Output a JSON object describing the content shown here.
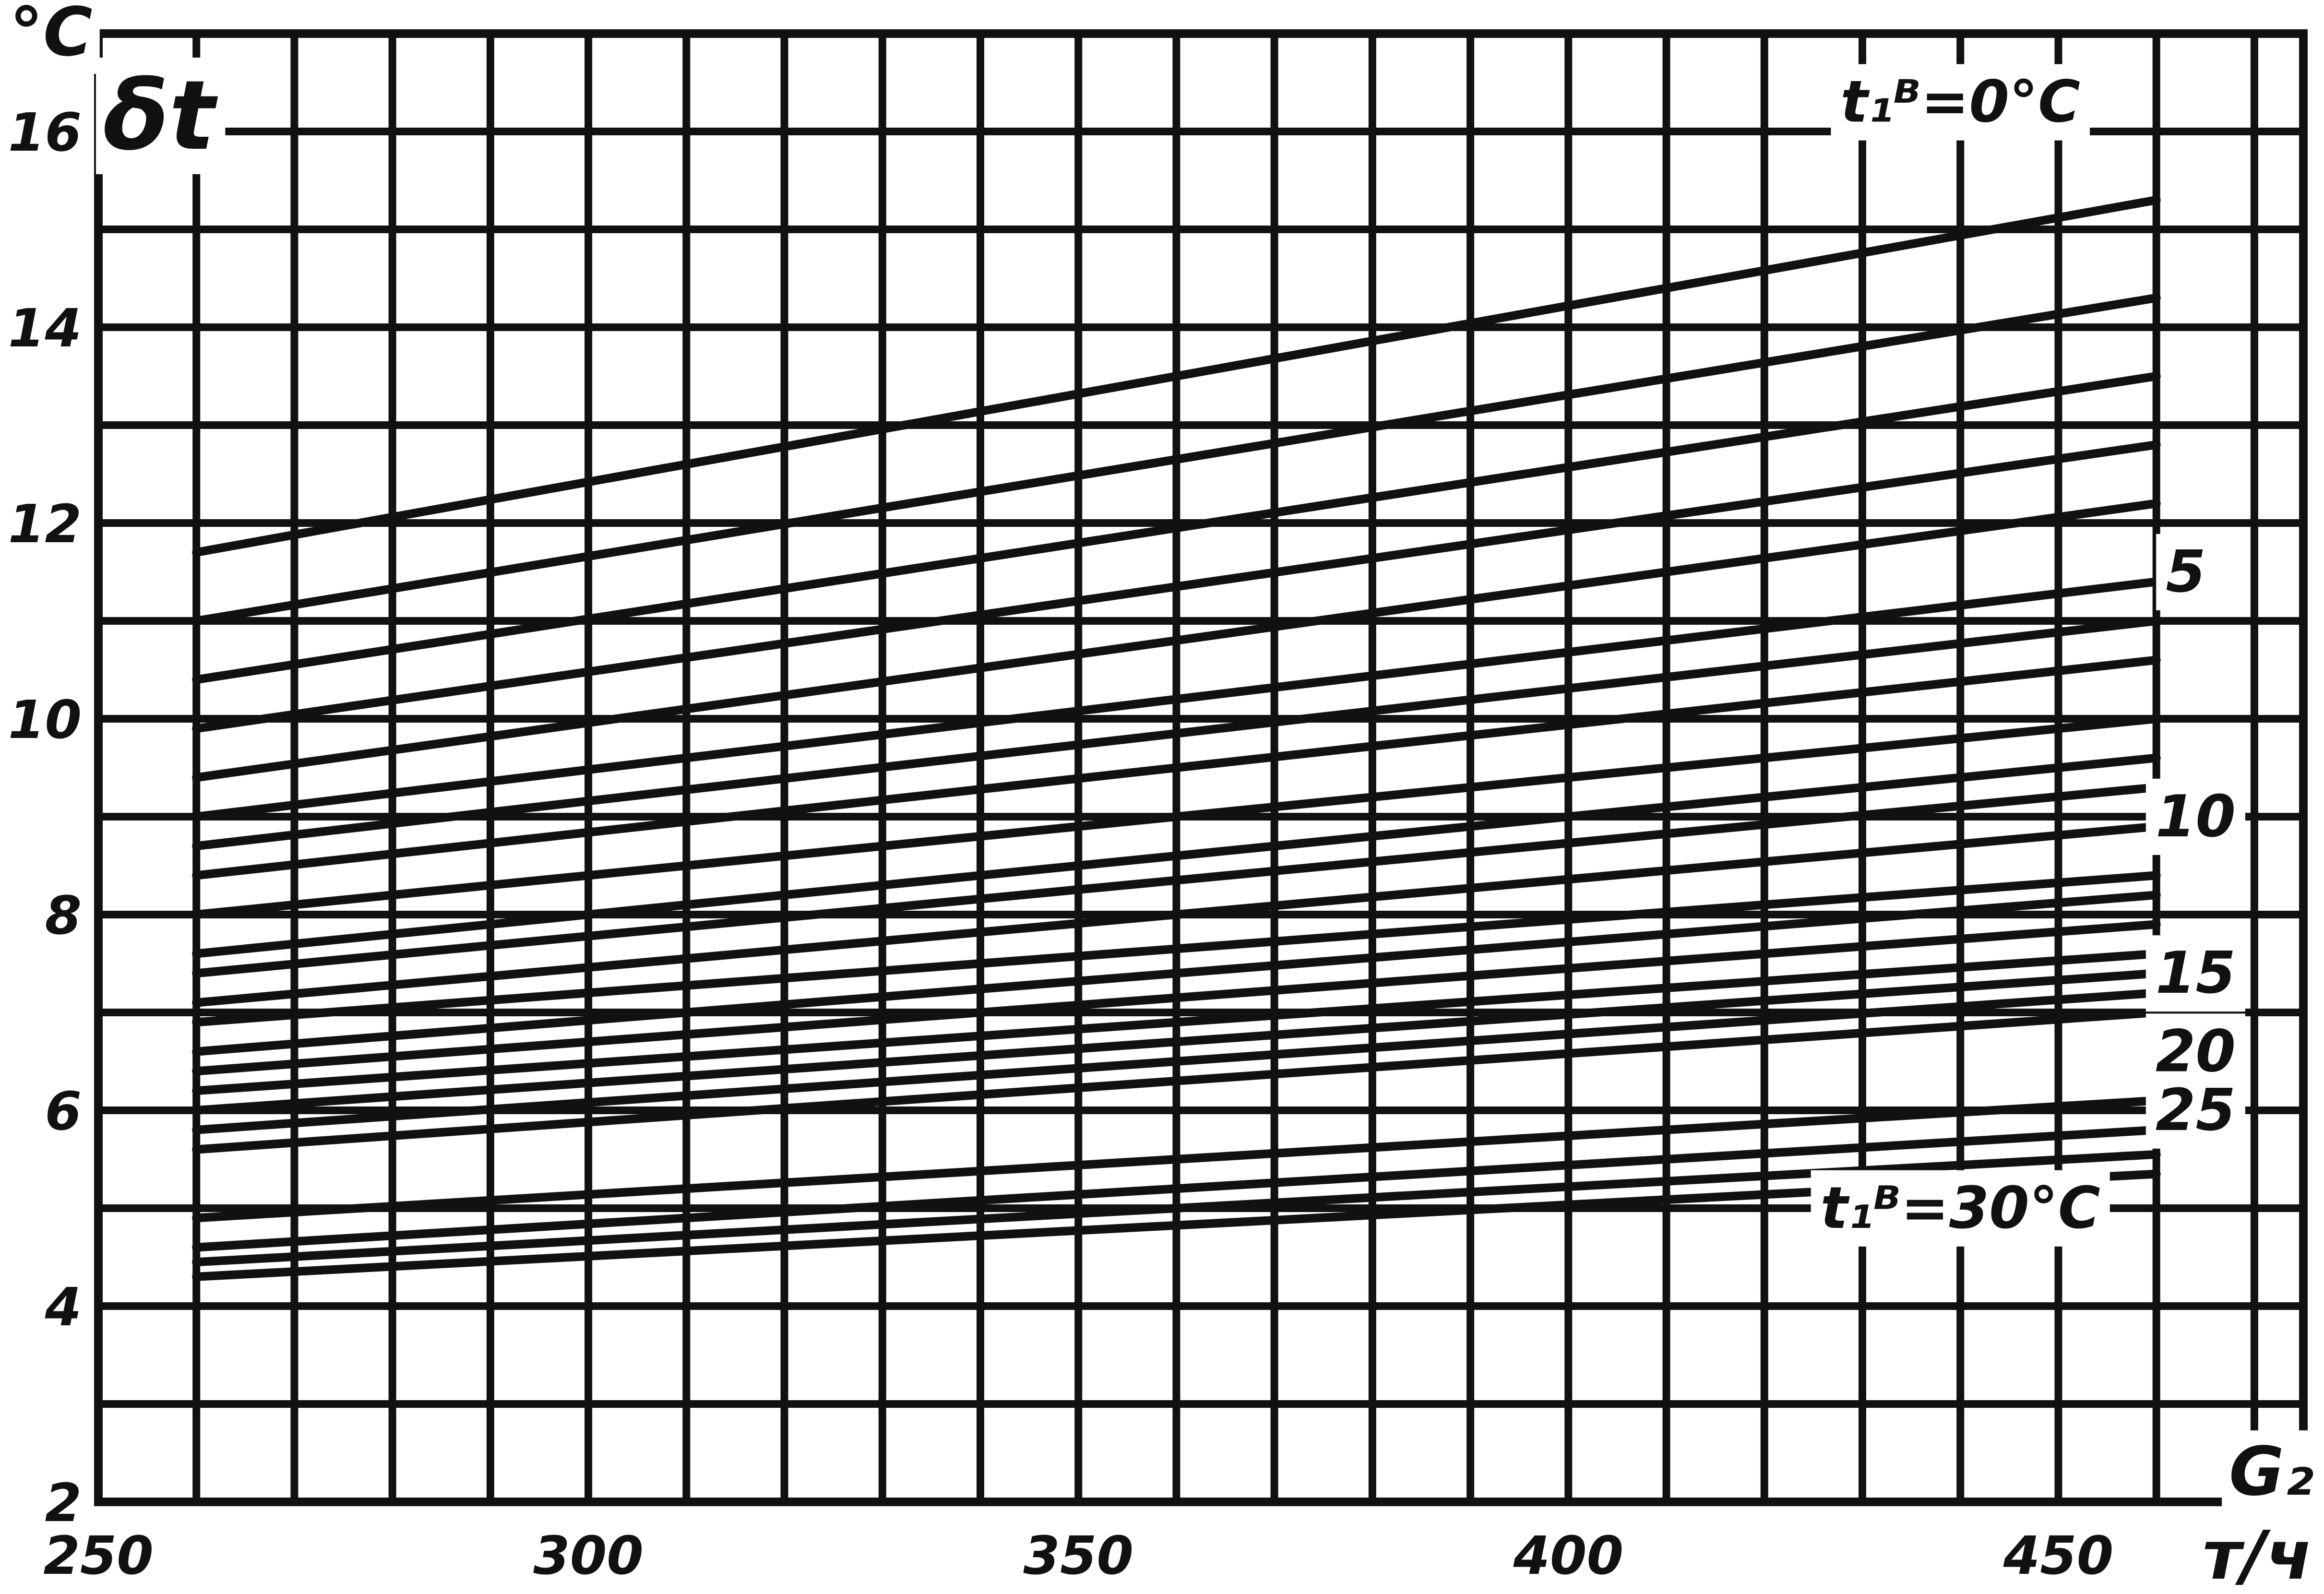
{
  "chart_data": {
    "type": "line",
    "x_unit": "т/ч",
    "y_unit": "°C",
    "ylabel": "δt",
    "xlabel": "G₂",
    "xlim": [
      250,
      475
    ],
    "ylim": [
      2,
      17
    ],
    "x_ticks": [
      250,
      300,
      350,
      400,
      450
    ],
    "y_ticks": [
      2,
      4,
      6,
      8,
      10,
      12,
      14,
      16
    ],
    "x_tick_labels": [
      "250",
      "300",
      "350",
      "400",
      "450"
    ],
    "y_tick_labels": [
      "2",
      "4",
      "6",
      "8",
      "10",
      "12",
      "14",
      "16"
    ],
    "grid": true,
    "curve_labels": [
      {
        "text": "t₁ᴮ=0°C",
        "x": 440,
        "y": 16.1
      },
      {
        "text": "5",
        "x": 463,
        "y": 11.3
      },
      {
        "text": "10",
        "x": 464,
        "y": 8.8
      },
      {
        "text": "15",
        "x": 464,
        "y": 7.2
      },
      {
        "text": "20",
        "x": 464,
        "y": 6.4
      },
      {
        "text": "25",
        "x": 464,
        "y": 5.8
      },
      {
        "text": "t₁ᴮ=30°C",
        "x": 440,
        "y": 4.8
      }
    ],
    "series": [
      {
        "values": [
          [
            260,
            11.7
          ],
          [
            460,
            15.3
          ]
        ]
      },
      {
        "values": [
          [
            260,
            11.0
          ],
          [
            460,
            14.3
          ]
        ]
      },
      {
        "values": [
          [
            260,
            10.4
          ],
          [
            460,
            13.5
          ]
        ]
      },
      {
        "values": [
          [
            260,
            9.9
          ],
          [
            460,
            12.8
          ]
        ]
      },
      {
        "values": [
          [
            260,
            9.4
          ],
          [
            460,
            12.2
          ]
        ]
      },
      {
        "values": [
          [
            260,
            9.0
          ],
          [
            460,
            11.4
          ]
        ]
      },
      {
        "values": [
          [
            260,
            8.7
          ],
          [
            460,
            11.0
          ]
        ]
      },
      {
        "values": [
          [
            260,
            8.4
          ],
          [
            460,
            10.6
          ]
        ]
      },
      {
        "values": [
          [
            260,
            8.0
          ],
          [
            460,
            10.0
          ]
        ]
      },
      {
        "values": [
          [
            260,
            7.6
          ],
          [
            460,
            9.6
          ]
        ]
      },
      {
        "values": [
          [
            260,
            7.4
          ],
          [
            460,
            9.3
          ]
        ]
      },
      {
        "values": [
          [
            260,
            7.1
          ],
          [
            460,
            8.9
          ]
        ]
      },
      {
        "values": [
          [
            260,
            6.9
          ],
          [
            460,
            8.4
          ]
        ]
      },
      {
        "values": [
          [
            260,
            6.6
          ],
          [
            460,
            8.2
          ]
        ]
      },
      {
        "values": [
          [
            260,
            6.4
          ],
          [
            460,
            7.9
          ]
        ]
      },
      {
        "values": [
          [
            260,
            6.2
          ],
          [
            460,
            7.6
          ]
        ]
      },
      {
        "values": [
          [
            260,
            6.0
          ],
          [
            460,
            7.4
          ]
        ]
      },
      {
        "values": [
          [
            260,
            5.8
          ],
          [
            460,
            7.2
          ]
        ]
      },
      {
        "values": [
          [
            260,
            5.6
          ],
          [
            460,
            7.0
          ]
        ]
      },
      {
        "values": [
          [
            260,
            4.9
          ],
          [
            460,
            6.1
          ]
        ]
      },
      {
        "values": [
          [
            260,
            4.6
          ],
          [
            460,
            5.8
          ]
        ]
      },
      {
        "values": [
          [
            260,
            4.45
          ],
          [
            460,
            5.55
          ]
        ]
      },
      {
        "values": [
          [
            260,
            4.3
          ],
          [
            460,
            5.35
          ]
        ]
      }
    ]
  }
}
